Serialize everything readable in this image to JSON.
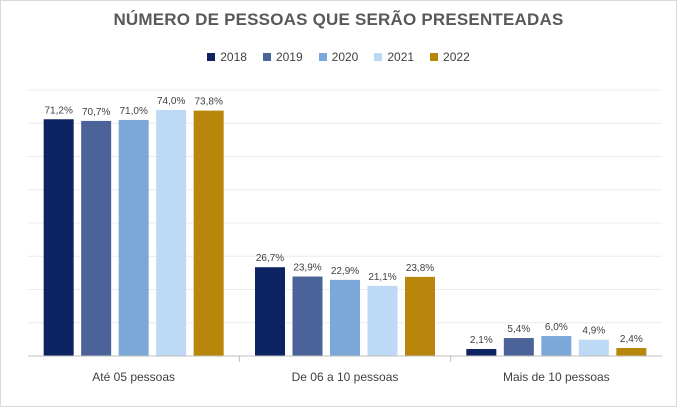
{
  "chart_data": {
    "type": "bar",
    "title": "NÚMERO DE PESSOAS QUE SERÃO PRESENTEADAS",
    "categories": [
      "Até 05 pessoas",
      "De 06 a 10 pessoas",
      "Mais de 10 pessoas"
    ],
    "series": [
      {
        "name": "2018",
        "color": "#0c2461",
        "values": [
          71.2,
          26.7,
          2.1
        ],
        "labels": [
          "71,2%",
          "26,7%",
          "2,1%"
        ]
      },
      {
        "name": "2019",
        "color": "#4b6398",
        "values": [
          70.7,
          23.9,
          5.4
        ],
        "labels": [
          "70,7%",
          "23,9%",
          "5,4%"
        ]
      },
      {
        "name": "2020",
        "color": "#7ba7d9",
        "values": [
          71.0,
          22.9,
          6.0
        ],
        "labels": [
          "71,0%",
          "22,9%",
          "6,0%"
        ]
      },
      {
        "name": "2021",
        "color": "#bdd9f5",
        "values": [
          74.0,
          21.1,
          4.9
        ],
        "labels": [
          "74,0%",
          "21,1%",
          "4,9%"
        ]
      },
      {
        "name": "2022",
        "color": "#b8860b",
        "values": [
          73.8,
          23.8,
          2.4
        ],
        "labels": [
          "73,8%",
          "23,8%",
          "2,4%"
        ]
      }
    ],
    "ylim": [
      0,
      80
    ],
    "grid": true,
    "legend_position": "top"
  }
}
